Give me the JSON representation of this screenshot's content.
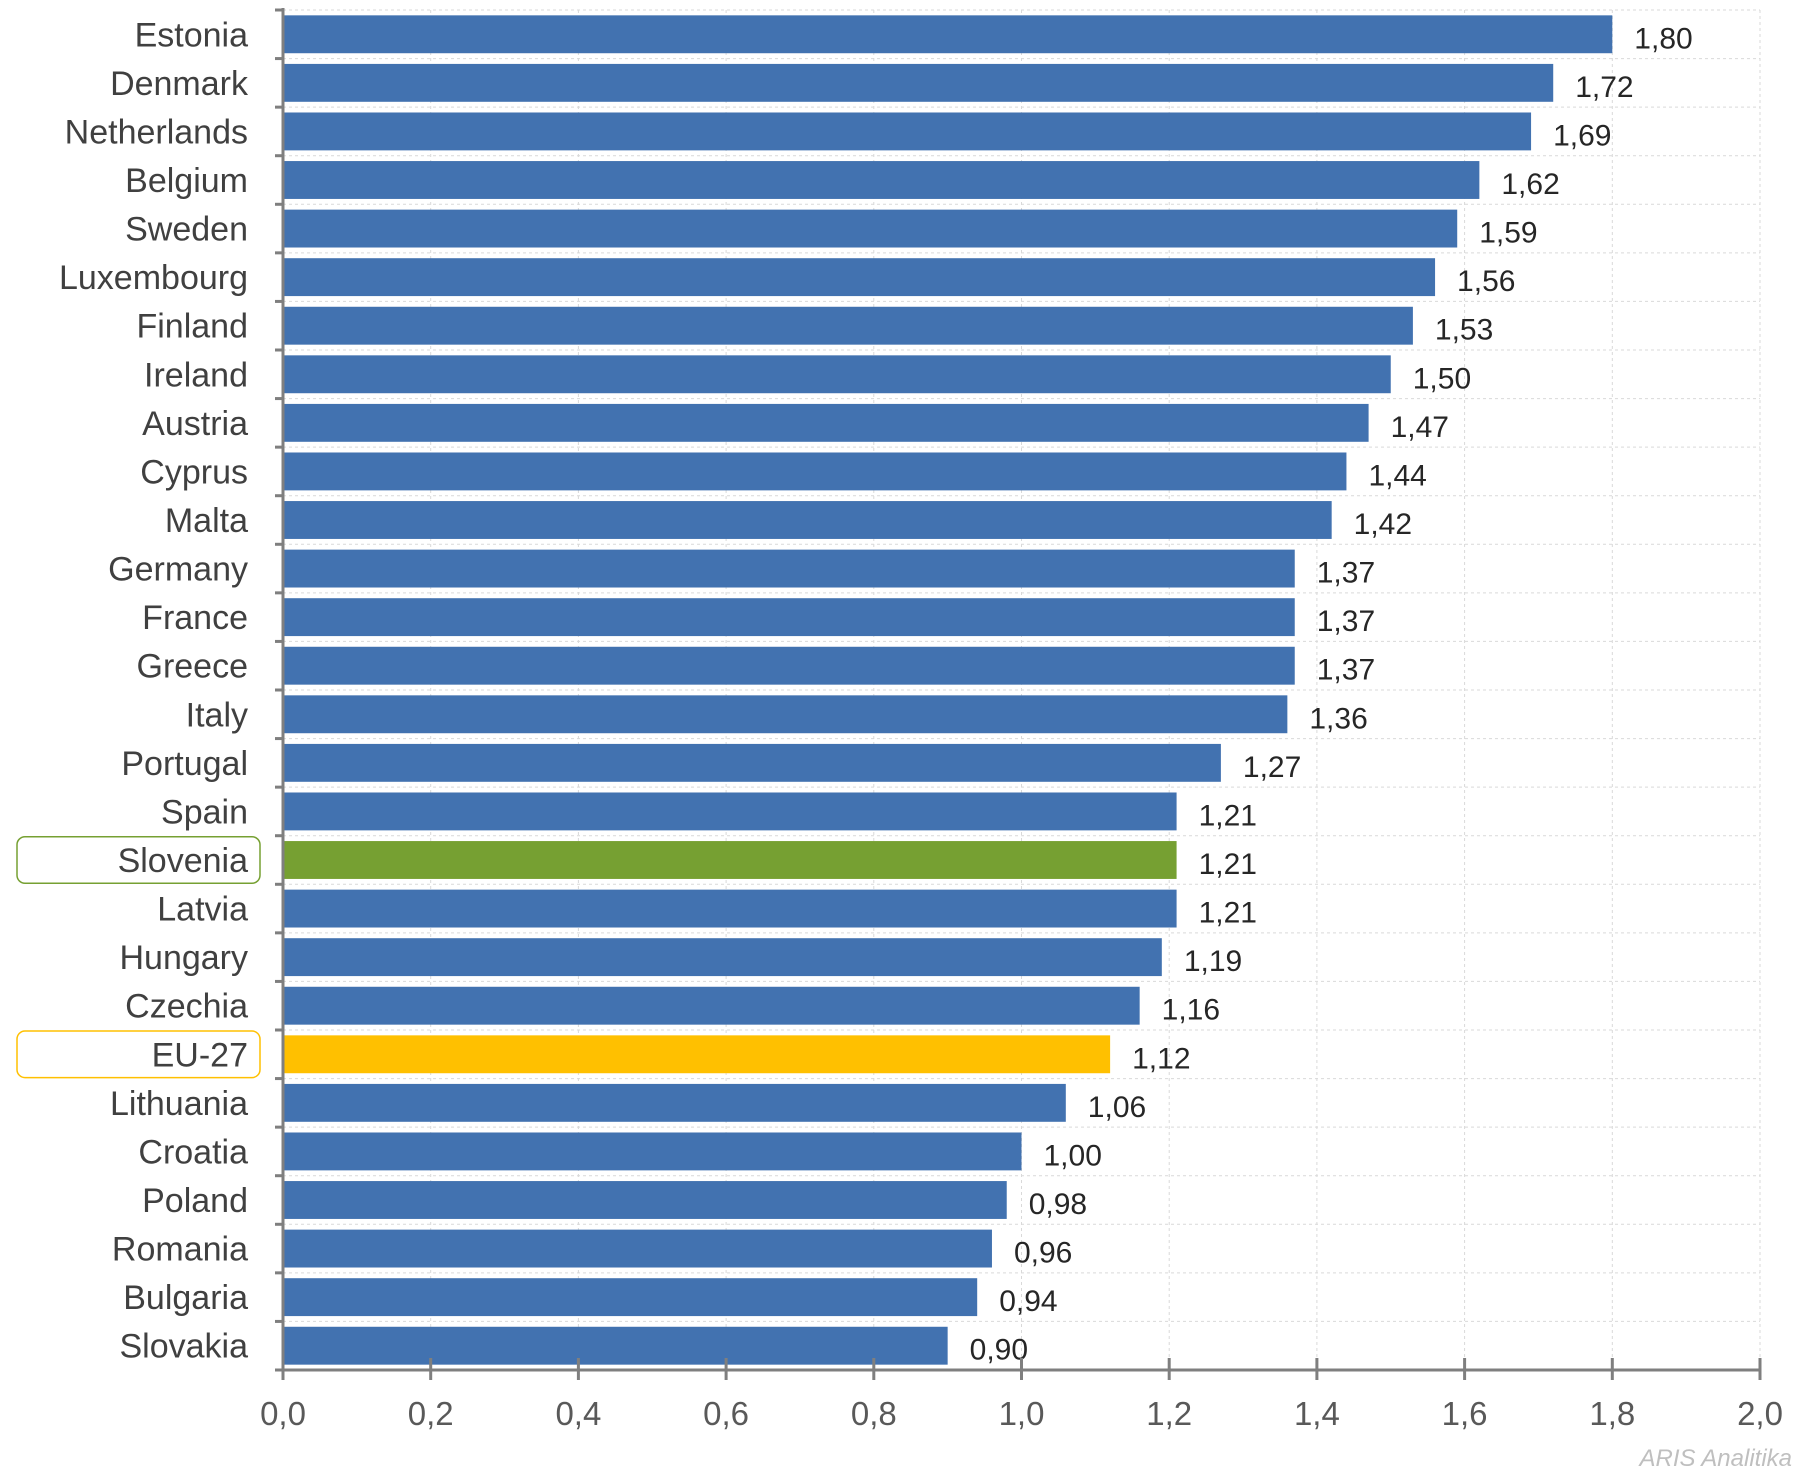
{
  "chart_data": {
    "type": "bar",
    "orientation": "horizontal",
    "categories": [
      "Estonia",
      "Denmark",
      "Netherlands",
      "Belgium",
      "Sweden",
      "Luxembourg",
      "Finland",
      "Ireland",
      "Austria",
      "Cyprus",
      "Malta",
      "Germany",
      "France",
      "Greece",
      "Italy",
      "Portugal",
      "Spain",
      "Slovenia",
      "Latvia",
      "Hungary",
      "Czechia",
      "EU-27",
      "Lithuania",
      "Croatia",
      "Poland",
      "Romania",
      "Bulgaria",
      "Slovakia"
    ],
    "values": [
      1.8,
      1.72,
      1.69,
      1.62,
      1.59,
      1.56,
      1.53,
      1.5,
      1.47,
      1.44,
      1.42,
      1.37,
      1.37,
      1.37,
      1.36,
      1.27,
      1.21,
      1.21,
      1.21,
      1.19,
      1.16,
      1.12,
      1.06,
      1.0,
      0.98,
      0.96,
      0.94,
      0.9
    ],
    "value_labels": [
      "1,80",
      "1,72",
      "1,69",
      "1,62",
      "1,59",
      "1,56",
      "1,53",
      "1,50",
      "1,47",
      "1,44",
      "1,42",
      "1,37",
      "1,37",
      "1,37",
      "1,36",
      "1,27",
      "1,21",
      "1,21",
      "1,21",
      "1,19",
      "1,16",
      "1,12",
      "1,06",
      "1,00",
      "0,98",
      "0,96",
      "0,94",
      "0,90"
    ],
    "xlim": [
      0,
      2.0
    ],
    "x_ticks": [
      "0,0",
      "0,2",
      "0,4",
      "0,6",
      "0,8",
      "1,0",
      "1,2",
      "1,4",
      "1,6",
      "1,8",
      "2,0"
    ],
    "grid": true,
    "colors": {
      "default": "#4272b0",
      "highlight_slovenia": "#76a032",
      "highlight_eu27": "#ffc000"
    },
    "highlights": [
      {
        "category": "Slovenia",
        "color": "#76a032",
        "box_color": "#76a032"
      },
      {
        "category": "EU-27",
        "color": "#ffc000",
        "box_color": "#ffc000"
      }
    ],
    "title": "",
    "xlabel": "",
    "ylabel": ""
  },
  "watermark": "ARIS Analitika"
}
